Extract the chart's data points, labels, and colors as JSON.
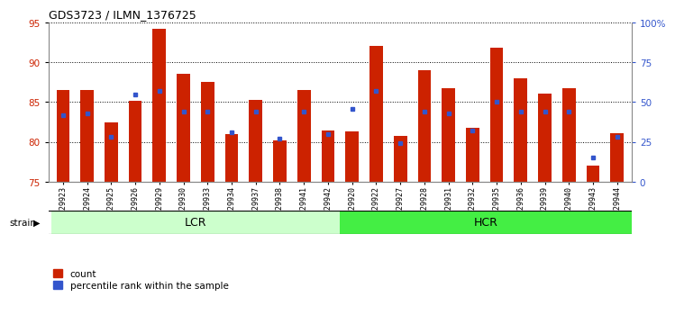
{
  "title": "GDS3723 / ILMN_1376725",
  "samples": [
    "GSM429923",
    "GSM429924",
    "GSM429925",
    "GSM429926",
    "GSM429929",
    "GSM429930",
    "GSM429933",
    "GSM429934",
    "GSM429937",
    "GSM429938",
    "GSM429941",
    "GSM429942",
    "GSM429920",
    "GSM429922",
    "GSM429927",
    "GSM429928",
    "GSM429931",
    "GSM429932",
    "GSM429935",
    "GSM429936",
    "GSM429939",
    "GSM429940",
    "GSM429943",
    "GSM429944"
  ],
  "counts": [
    86.5,
    86.5,
    82.5,
    85.2,
    94.2,
    88.5,
    87.5,
    81.0,
    85.3,
    80.2,
    86.5,
    81.4,
    81.3,
    92.0,
    80.7,
    89.0,
    86.8,
    81.8,
    91.8,
    88.0,
    86.1,
    86.8,
    77.0,
    81.1
  ],
  "percentile_ranks": [
    42,
    43,
    28,
    55,
    57,
    44,
    44,
    31,
    44,
    27,
    44,
    30,
    46,
    57,
    24,
    44,
    43,
    32,
    50,
    44,
    44,
    44,
    15,
    28
  ],
  "groups": [
    "LCR",
    "LCR",
    "LCR",
    "LCR",
    "LCR",
    "LCR",
    "LCR",
    "LCR",
    "LCR",
    "LCR",
    "LCR",
    "LCR",
    "HCR",
    "HCR",
    "HCR",
    "HCR",
    "HCR",
    "HCR",
    "HCR",
    "HCR",
    "HCR",
    "HCR",
    "HCR",
    "HCR"
  ],
  "ylim_left": [
    75,
    95
  ],
  "ylim_right": [
    0,
    100
  ],
  "yticks_left": [
    75,
    80,
    85,
    90,
    95
  ],
  "yticks_right": [
    0,
    25,
    50,
    75,
    100
  ],
  "bar_color": "#cc2200",
  "dot_color": "#3355cc",
  "grid_color": "#000000",
  "bg_color": "#ffffff",
  "lcr_color": "#ccffcc",
  "hcr_color": "#44ee44",
  "strain_label": "strain",
  "legend_count": "count",
  "legend_pct": "percentile rank within the sample",
  "ylabel_left_color": "#cc2200",
  "ylabel_right_color": "#3355cc",
  "bar_width": 0.55
}
